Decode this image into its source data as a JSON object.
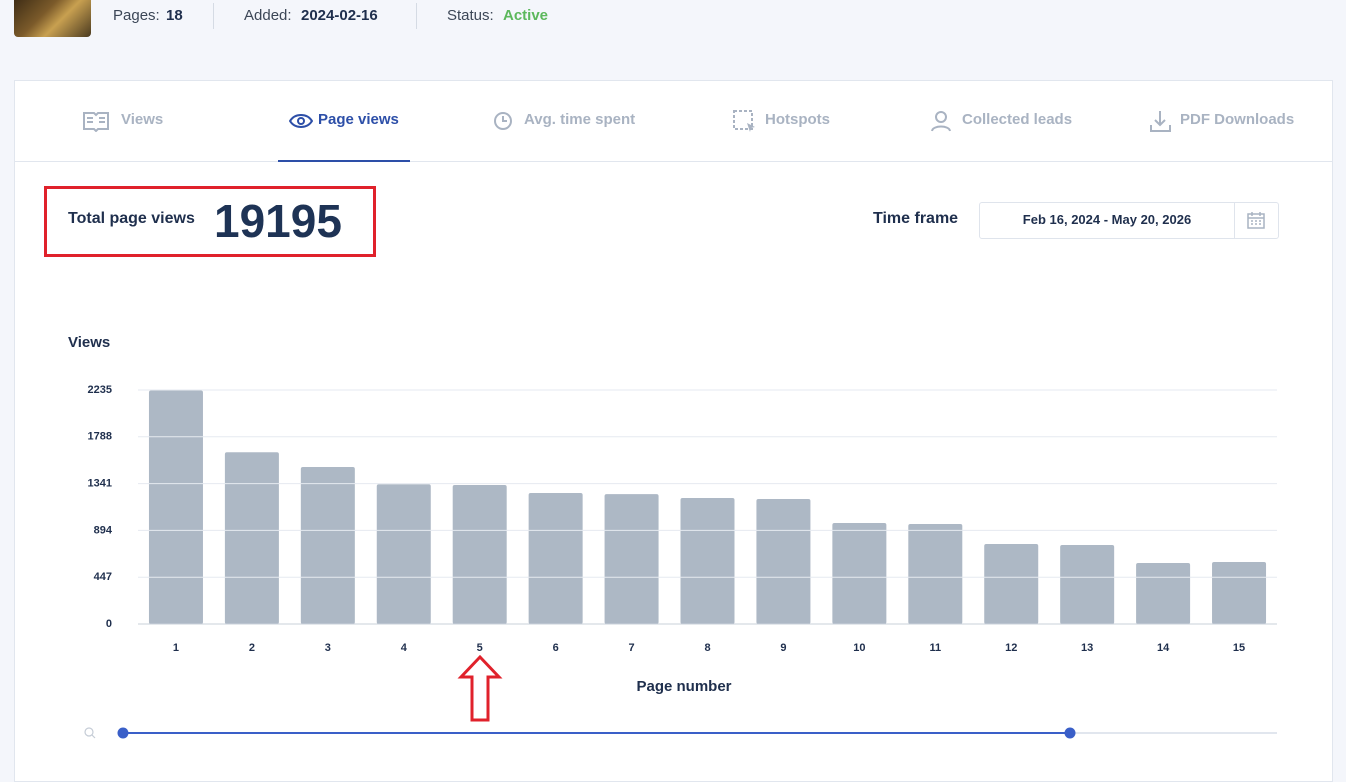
{
  "header": {
    "pages_label": "Pages:",
    "pages": 18,
    "added_label": "Added:",
    "added": "2024-02-16",
    "status_label": "Status:",
    "status": "Active"
  },
  "tabs": [
    "Views",
    "Page views",
    "Avg. time spent",
    "Hotspots",
    "Collected leads",
    "PDF Downloads"
  ],
  "summary": {
    "label": "Total page views",
    "total": 19195
  },
  "time_frame": {
    "label": "Time frame",
    "range": "Feb 16, 2024 - May 20, 2026"
  },
  "chart_data": {
    "type": "bar",
    "y_label": "Views",
    "x_label": "Page number",
    "categories": [
      "1",
      "2",
      "3",
      "4",
      "5",
      "6",
      "7",
      "8",
      "9",
      "10",
      "11",
      "12",
      "13",
      "14",
      "15"
    ],
    "values": [
      2230,
      1640,
      1500,
      1335,
      1328,
      1251,
      1241,
      1203,
      1194,
      965,
      955,
      764,
      754,
      583,
      592
    ],
    "color": "#adb8c5",
    "ylim": [
      0,
      2235
    ],
    "yticks": [
      0,
      447,
      894,
      1341,
      1788,
      2235
    ],
    "grid": true
  }
}
